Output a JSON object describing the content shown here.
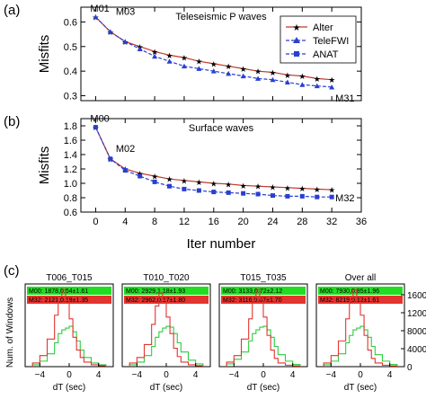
{
  "panels": {
    "a": "(a)",
    "b": "(b)",
    "c": "(c)"
  },
  "chart_data": [
    {
      "type": "line",
      "title": "Teleseismic P waves",
      "ylabel": "Misfits",
      "xlim": [
        -2,
        36
      ],
      "ylim": [
        0.28,
        0.66
      ],
      "yticks": [
        "0.3",
        "0.4",
        "0.5",
        "0.6"
      ],
      "legend": {
        "placement": "top-right",
        "entries": [
          "Alter",
          "TeleFWI",
          "ANAT"
        ]
      },
      "annotations": [
        {
          "text": "M01",
          "x": 0,
          "y": 0.62
        },
        {
          "text": "M03",
          "x": 2,
          "y": 0.6
        },
        {
          "text": "M31",
          "x": 32,
          "y": 0.32
        }
      ],
      "series": [
        {
          "name": "Alter",
          "color": "#c0392b",
          "x": [
            0,
            2,
            4,
            6,
            8,
            10,
            12,
            14,
            16,
            18,
            20,
            22,
            24,
            26,
            28,
            30,
            32
          ],
          "values": [
            0.62,
            0.56,
            0.52,
            0.5,
            0.48,
            0.465,
            0.455,
            0.44,
            0.43,
            0.42,
            0.41,
            0.4,
            0.395,
            0.385,
            0.38,
            0.37,
            0.365
          ]
        },
        {
          "name": "TeleFWI",
          "color": "#2a3fcf",
          "x": [
            0,
            2,
            4,
            6,
            8,
            10,
            12,
            14,
            16,
            18,
            20,
            22,
            24,
            26,
            28,
            30,
            32
          ],
          "values": [
            0.62,
            0.56,
            0.52,
            0.49,
            0.46,
            0.44,
            0.42,
            0.41,
            0.4,
            0.39,
            0.38,
            0.37,
            0.365,
            0.355,
            0.345,
            0.34,
            0.335
          ]
        }
      ]
    },
    {
      "type": "line",
      "title": "Surface waves",
      "ylabel": "Misfits",
      "xlabel": "Iter number",
      "xlim": [
        -2,
        36
      ],
      "ylim": [
        0.6,
        1.9
      ],
      "xticks": [
        "0",
        "4",
        "8",
        "12",
        "16",
        "20",
        "24",
        "28",
        "32",
        "36"
      ],
      "yticks": [
        "0.6",
        "0.8",
        "1.0",
        "1.2",
        "1.4",
        "1.6",
        "1.8"
      ],
      "annotations": [
        {
          "text": "M00",
          "x": 0,
          "y": 1.78
        },
        {
          "text": "M02",
          "x": 2,
          "y": 1.34
        },
        {
          "text": "M32",
          "x": 32,
          "y": 0.9
        }
      ],
      "series": [
        {
          "name": "Alter",
          "color": "#c0392b",
          "x": [
            0,
            2,
            4,
            6,
            8,
            10,
            12,
            14,
            16,
            18,
            20,
            22,
            24,
            26,
            28,
            30,
            32
          ],
          "values": [
            1.78,
            1.34,
            1.2,
            1.14,
            1.1,
            1.06,
            1.04,
            1.02,
            1.0,
            0.99,
            0.97,
            0.96,
            0.95,
            0.94,
            0.93,
            0.92,
            0.91
          ]
        },
        {
          "name": "ANAT",
          "color": "#2a3fcf",
          "x": [
            0,
            2,
            4,
            6,
            8,
            10,
            12,
            14,
            16,
            18,
            20,
            22,
            24,
            26,
            28,
            30,
            32
          ],
          "values": [
            1.78,
            1.34,
            1.18,
            1.1,
            1.02,
            0.96,
            0.92,
            0.9,
            0.88,
            0.87,
            0.86,
            0.85,
            0.83,
            0.82,
            0.82,
            0.81,
            0.81
          ]
        }
      ]
    },
    {
      "type": "bar",
      "subplots": [
        {
          "title": "T006_T015",
          "stats": {
            "m00": "M00: 1878,0.54±1.61",
            "m32": "M32: 2121,0.18±1.35"
          },
          "bins": [
            -5,
            -4,
            -3,
            -2,
            -1.5,
            -1,
            -0.5,
            0,
            0.5,
            1,
            1.5,
            2,
            3,
            4,
            5
          ],
          "m32_counts": [
            20,
            60,
            150,
            280,
            380,
            420,
            360,
            260,
            160,
            90,
            50,
            25,
            10,
            5
          ],
          "m00_counts": [
            10,
            30,
            70,
            130,
            180,
            200,
            210,
            220,
            190,
            140,
            90,
            50,
            20,
            10
          ]
        },
        {
          "title": "T010_T020",
          "stats": {
            "m00": "M00: 2929,1.18±1.93",
            "m32": "M32: 2962,0.17±1.80"
          },
          "bins": [
            -5,
            -4,
            -3,
            -2,
            -1.5,
            -1,
            -0.5,
            0,
            0.5,
            1,
            1.5,
            2,
            3,
            4,
            5
          ],
          "m32_counts": [
            20,
            50,
            120,
            230,
            330,
            400,
            360,
            270,
            180,
            100,
            55,
            25,
            10,
            5
          ],
          "m00_counts": [
            10,
            25,
            60,
            110,
            160,
            190,
            210,
            220,
            215,
            180,
            130,
            80,
            35,
            15
          ]
        },
        {
          "title": "T015_T035",
          "stats": {
            "m00": "M00: 3133,0.72±2.12",
            "m32": "M32: 3116,0.07±1.70"
          },
          "bins": [
            -5,
            -4,
            -3,
            -2,
            -1.5,
            -1,
            -0.5,
            0,
            0.5,
            1,
            1.5,
            2,
            3,
            4,
            5
          ],
          "m32_counts": [
            25,
            60,
            150,
            260,
            360,
            420,
            370,
            270,
            170,
            90,
            45,
            20,
            8,
            4
          ],
          "m00_counts": [
            15,
            40,
            80,
            140,
            180,
            200,
            215,
            220,
            200,
            160,
            110,
            65,
            30,
            12
          ]
        },
        {
          "title": "Over all",
          "stats": {
            "m00": "M00: 7930,0.85±1.96",
            "m32": "M32: 8219,0.12±1.61"
          },
          "bins": [
            -5,
            -4,
            -3,
            -2,
            -1.5,
            -1,
            -0.5,
            0,
            0.5,
            1,
            1.5,
            2,
            3,
            4,
            5
          ],
          "m32_counts": [
            20,
            60,
            140,
            260,
            360,
            420,
            380,
            280,
            170,
            90,
            45,
            20,
            8,
            4
          ],
          "m00_counts": [
            10,
            30,
            70,
            130,
            170,
            200,
            210,
            220,
            200,
            160,
            110,
            65,
            30,
            12
          ]
        }
      ],
      "ylabel": "Num. of Windows",
      "xlabel": "dT (sec)",
      "xticks": [
        "−4",
        "0",
        "4"
      ],
      "right_yticks": [
        "0",
        "4000",
        "8000",
        "12000",
        "16000"
      ],
      "colors": {
        "m00": "#2ecc40",
        "m32": "#e3342f"
      }
    }
  ]
}
